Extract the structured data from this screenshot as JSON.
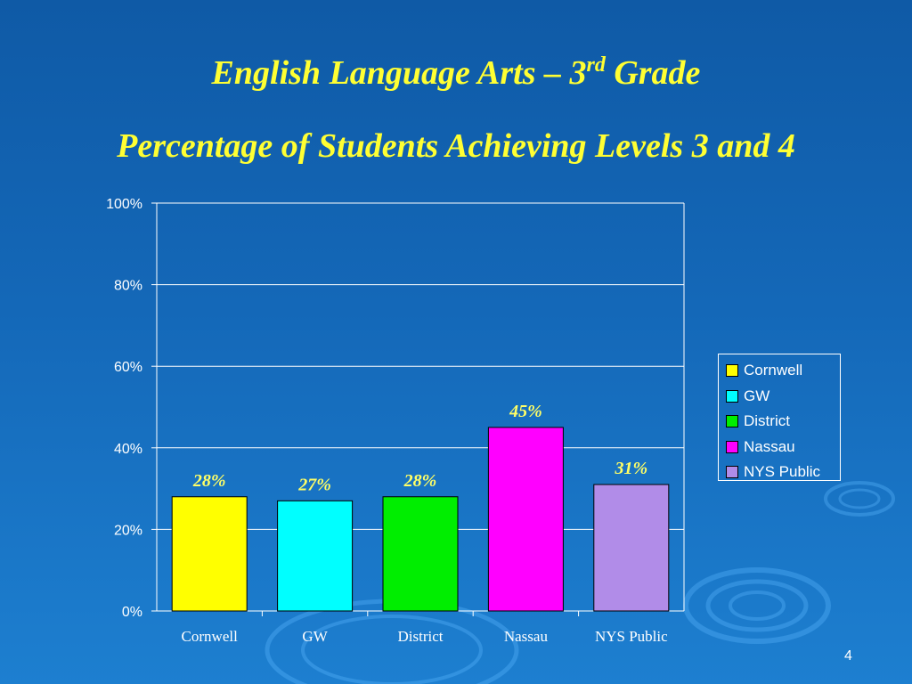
{
  "slide": {
    "title_main": "English Language Arts – 3",
    "title_sup": "rd",
    "title_tail": " Grade",
    "subtitle": "Percentage of Students Achieving Levels 3 and 4",
    "page_number": "4"
  },
  "chart_data": {
    "type": "bar",
    "title": "",
    "xlabel": "",
    "ylabel": "",
    "categories": [
      "Cornwell",
      "GW",
      "District",
      "Nassau",
      "NYS Public"
    ],
    "values": [
      28,
      27,
      28,
      45,
      31
    ],
    "data_labels": [
      "28%",
      "27%",
      "28%",
      "45%",
      "31%"
    ],
    "colors": [
      "#ffff00",
      "#00ffff",
      "#00ee00",
      "#ff00ff",
      "#b18ce8"
    ],
    "ylim": [
      0,
      100
    ],
    "yticks": [
      0,
      20,
      40,
      60,
      80,
      100
    ],
    "ytick_labels": [
      "0%",
      "20%",
      "40%",
      "60%",
      "80%",
      "100%"
    ],
    "grid": true,
    "legend_position": "right",
    "legend": [
      "Cornwell",
      "GW",
      "District",
      "Nassau",
      "NYS Public"
    ]
  }
}
